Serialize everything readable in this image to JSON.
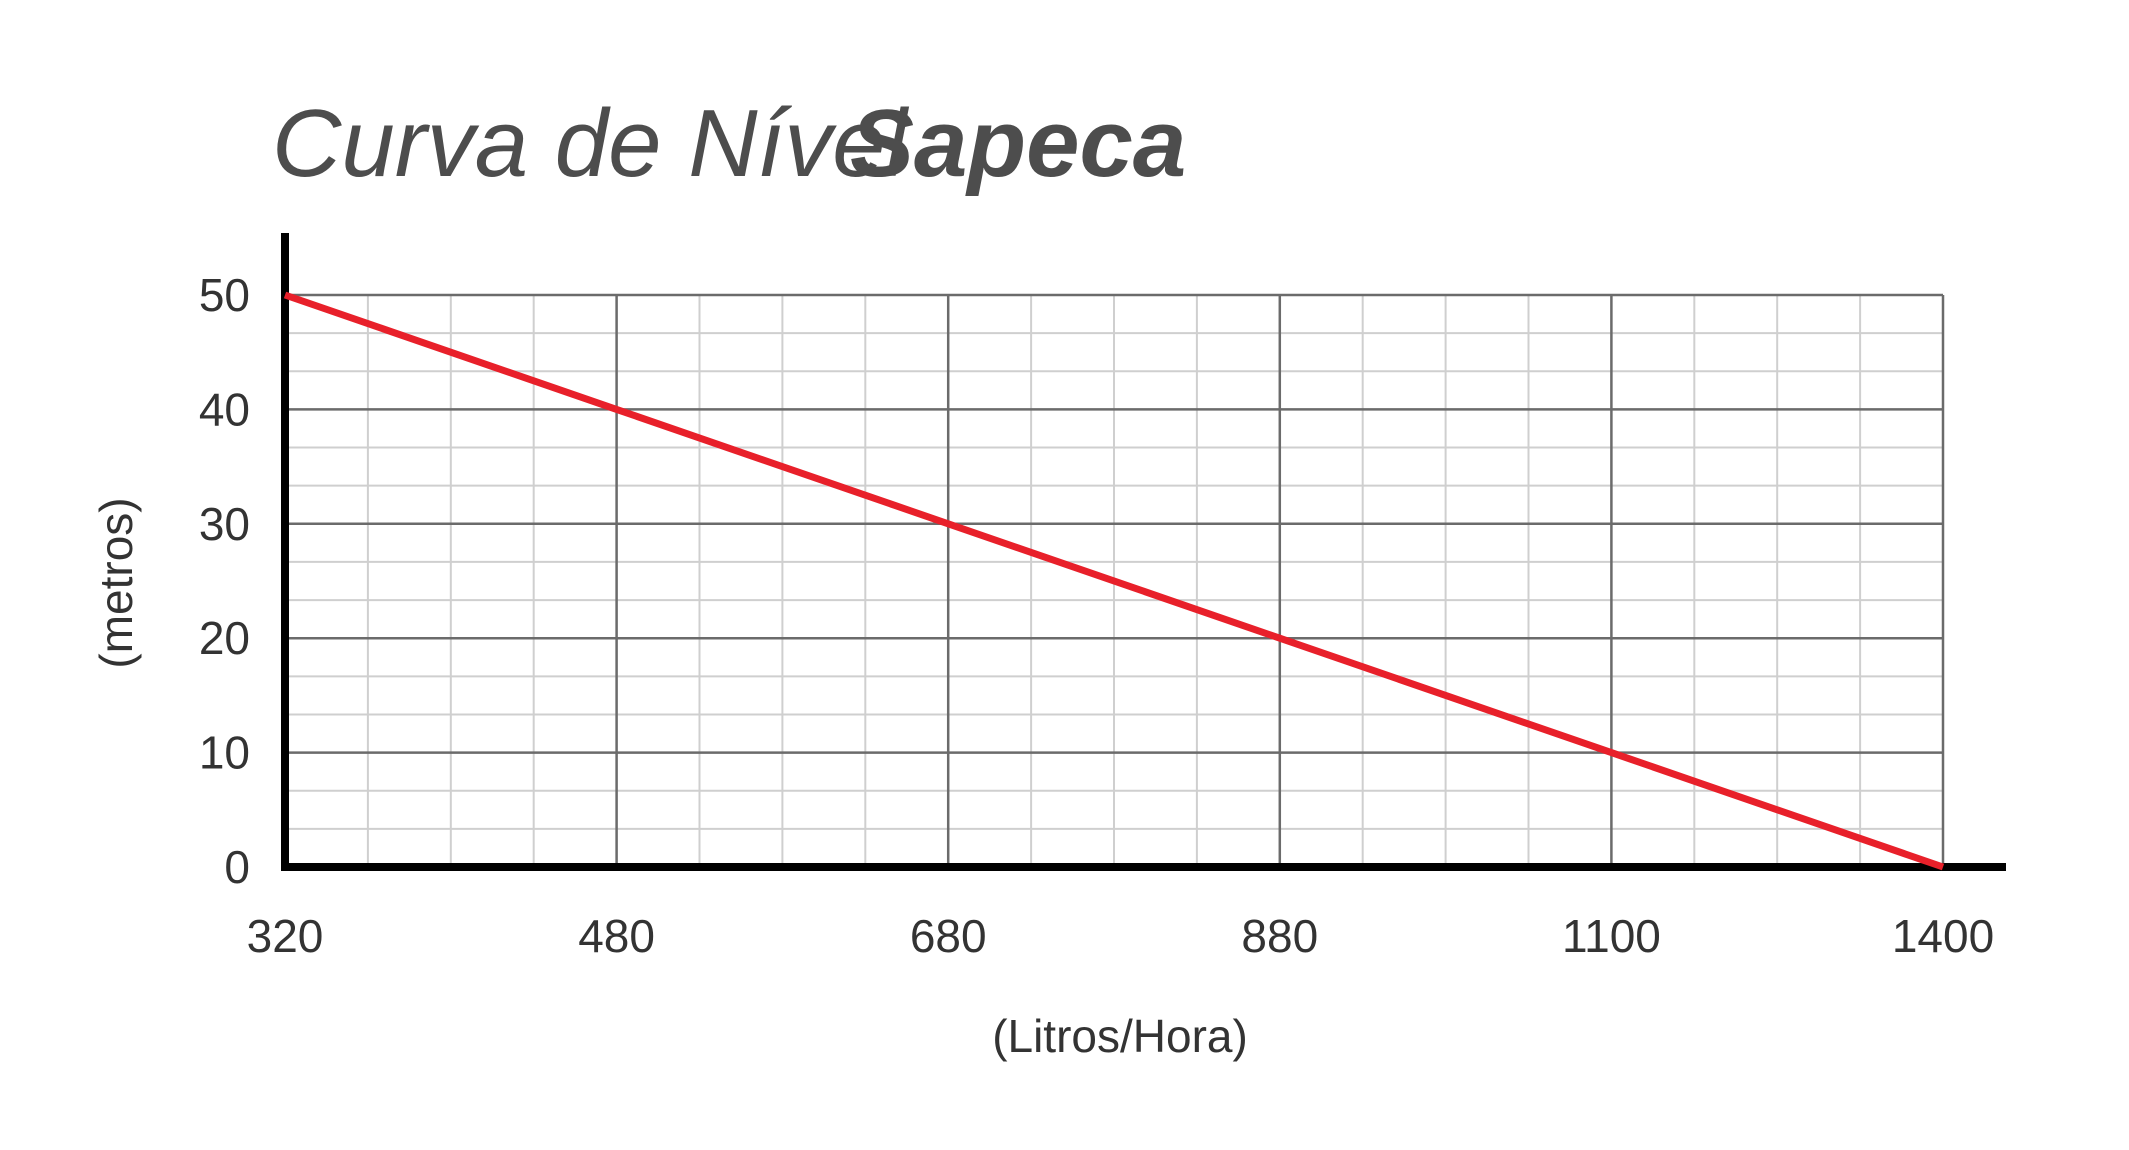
{
  "chart_data": {
    "type": "line",
    "title": "Curva de Nível",
    "title_emphasis": "Sapeca",
    "x_label": "(Litros/Hora)",
    "y_label": "(metros)",
    "categories": [
      "320",
      "480",
      "680",
      "880",
      "1100",
      "1400"
    ],
    "values": [
      50,
      40,
      30,
      20,
      10,
      0
    ],
    "color": "#e8202a",
    "ylim": [
      0,
      50
    ],
    "yticks": [
      0,
      10,
      20,
      30,
      40,
      50
    ],
    "grid": true
  }
}
